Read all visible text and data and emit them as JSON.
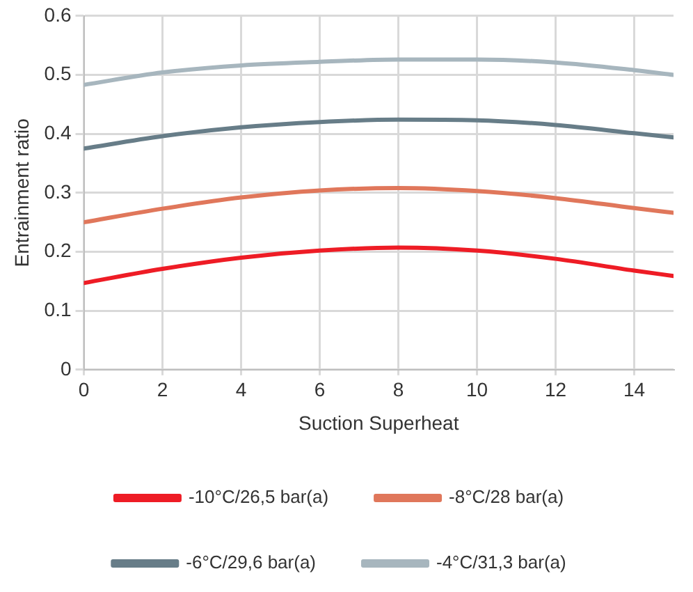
{
  "chart_data": {
    "type": "line",
    "xlabel": "Suction Superheat",
    "ylabel": "Entrainment ratio",
    "x": [
      0,
      2,
      4,
      6,
      8,
      10,
      12,
      14,
      15
    ],
    "series": [
      {
        "name": "-10°C/26,5 bar(a)",
        "color": "#ee1c25",
        "values": [
          0.147,
          0.171,
          0.19,
          0.202,
          0.207,
          0.202,
          0.188,
          0.168,
          0.159
        ]
      },
      {
        "name": "-8°C/28 bar(a)",
        "color": "#e0775b",
        "values": [
          0.25,
          0.273,
          0.292,
          0.304,
          0.308,
          0.303,
          0.291,
          0.274,
          0.266
        ]
      },
      {
        "name": "-6°C/29,6 bar(a)",
        "color": "#677d88",
        "values": [
          0.375,
          0.396,
          0.411,
          0.42,
          0.424,
          0.423,
          0.415,
          0.401,
          0.394
        ]
      },
      {
        "name": "-4°C/31,3 bar(a)",
        "color": "#a7b6be",
        "values": [
          0.483,
          0.504,
          0.516,
          0.522,
          0.526,
          0.526,
          0.521,
          0.508,
          0.5
        ]
      }
    ],
    "xlim": [
      0,
      15
    ],
    "xticks": [
      0,
      2,
      4,
      6,
      8,
      10,
      12,
      14
    ],
    "ylim": [
      0,
      0.6
    ],
    "yticks": [
      0,
      0.1,
      0.2,
      0.3,
      0.4,
      0.5,
      0.6
    ],
    "grid": true,
    "legend": "bottom",
    "marker": "none",
    "line_style": "solid"
  }
}
